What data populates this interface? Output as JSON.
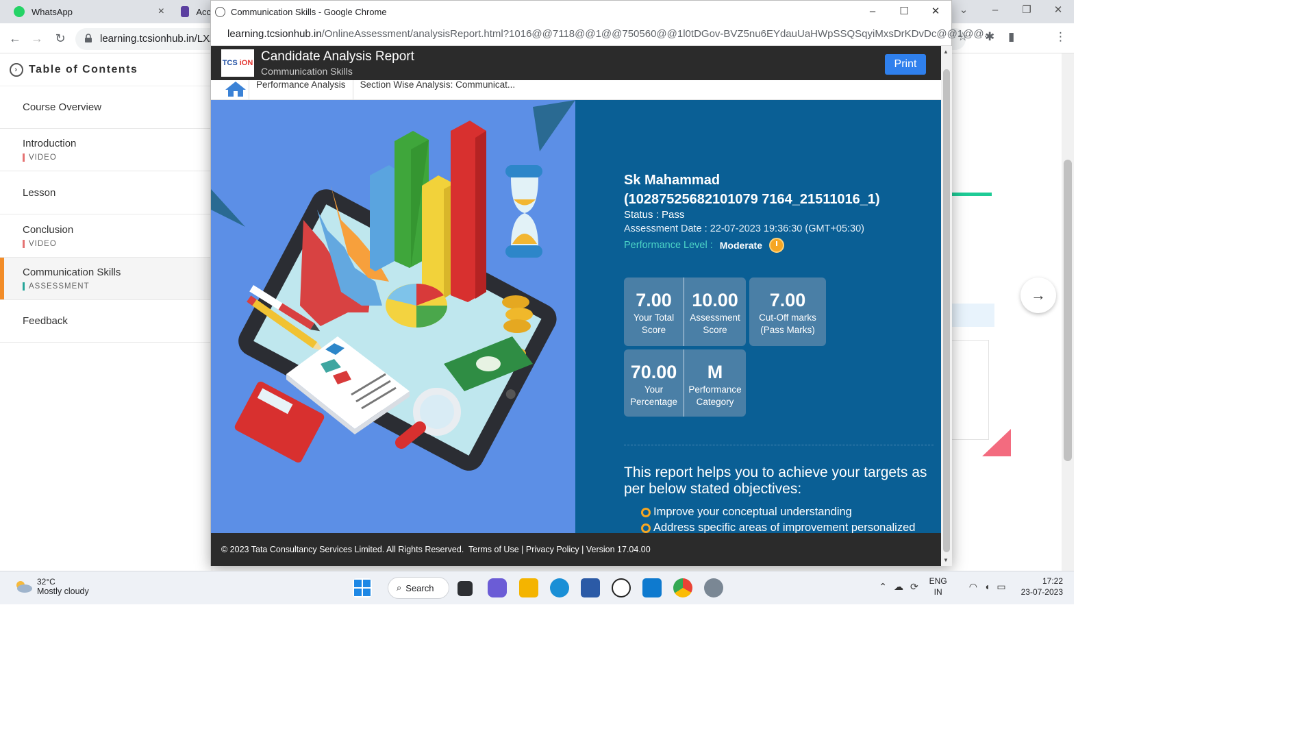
{
  "bg_browser": {
    "tabs": [
      {
        "label": "WhatsApp",
        "close": "×"
      },
      {
        "label": "Acc"
      }
    ],
    "url": "learning.tcsionhub.in/LX/c"
  },
  "sidebar": {
    "header": "Table of Contents",
    "items": [
      {
        "title": "Course Overview",
        "sub": ""
      },
      {
        "title": "Introduction",
        "sub": "VIDEO"
      },
      {
        "title": "Lesson",
        "sub": ""
      },
      {
        "title": "Conclusion",
        "sub": "VIDEO"
      },
      {
        "title": "Communication Skills",
        "sub": "ASSESSMENT"
      },
      {
        "title": "Feedback",
        "sub": ""
      }
    ]
  },
  "popup": {
    "window_title": "Communication Skills - Google Chrome",
    "url_host": "learning.tcsionhub.in",
    "url_path": "/OnlineAssessment/analysisReport.html?1016@@7118@@1@@750560@@1l0tDGov-BVZ5nu6EYdauUaHWpSSQSqyiMxsDrKDvDc@@1@@...",
    "report_title": "Candidate Analysis Report",
    "report_subtitle": "Communication Skills",
    "print_label": "Print",
    "breadcrumbs": [
      "Performance Analysis",
      "Section Wise Analysis: Communicat..."
    ],
    "candidate": {
      "name": "Sk Mahammad",
      "id": "(10287525682101079 7164_21511016_1)",
      "status": "Status : Pass",
      "assessment_date": "Assessment Date : 22-07-2023 19:36:30 (GMT+05:30)",
      "performance_level_label": "Performance Level :",
      "performance_level_value": "Moderate"
    },
    "scores": {
      "total": {
        "value": "7.00",
        "label1": "Your Total",
        "label2": "Score"
      },
      "assessment": {
        "value": "10.00",
        "label1": "Assessment",
        "label2": "Score"
      },
      "cutoff": {
        "value": "7.00",
        "label1": "Cut-Off marks",
        "label2": "(Pass Marks)"
      },
      "percentage": {
        "value": "70.00",
        "label1": "Your",
        "label2": "Percentage"
      },
      "category": {
        "value": "M",
        "label1": "Performance",
        "label2": "Category"
      }
    },
    "objectives_title": "This report helps you to achieve your targets as per below stated objectives:",
    "objectives": [
      "Improve your conceptual understanding",
      "Address specific areas of improvement personalized"
    ],
    "footer": {
      "copyright": "© 2023 Tata Consultancy Services Limited. All Rights Reserved.",
      "terms": "Terms of Use",
      "privacy": "Privacy Policy",
      "version": "Version 17.04.00"
    }
  },
  "taskbar": {
    "weather_temp": "32°C",
    "weather_desc": "Mostly cloudy",
    "search_label": "Search",
    "lang1": "ENG",
    "lang2": "IN",
    "time": "17:22",
    "date": "23-07-2023"
  },
  "colors": {
    "accent_orange": "#f28c28",
    "info_panel_blue": "#0a5f95",
    "illustration_blue": "#5c8fe6",
    "print_blue": "#2f80ed"
  }
}
